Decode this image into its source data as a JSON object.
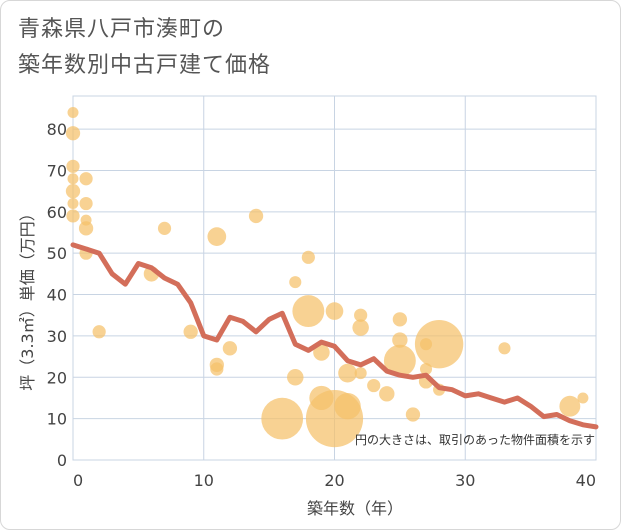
{
  "title": "青森県八戸市湊町の\n築年数別中古戸建て価格",
  "colors": {
    "bubble": "#f5c06a",
    "line": "#d36e5a",
    "grid": "#c8d4e3",
    "text": "#444444"
  },
  "chart_data": {
    "type": "scatter",
    "xlabel": "築年数（年）",
    "ylabel": "坪（3.3㎡）単価（万円）",
    "xlim": [
      0,
      40
    ],
    "ylim": [
      0,
      88
    ],
    "xticks": [
      "0",
      "10",
      "20",
      "30",
      "40"
    ],
    "yticks": [
      "0",
      "10",
      "20",
      "30",
      "40",
      "50",
      "60",
      "70",
      "80"
    ],
    "note": "円の大きさは、取引のあった物件面積を示す",
    "grid": true,
    "points": [
      {
        "x": 0,
        "y": 84,
        "s": 1
      },
      {
        "x": 0,
        "y": 79,
        "s": 1.3
      },
      {
        "x": 0,
        "y": 71,
        "s": 1.2
      },
      {
        "x": 0,
        "y": 68,
        "s": 1
      },
      {
        "x": 0,
        "y": 65,
        "s": 1.3
      },
      {
        "x": 0,
        "y": 62,
        "s": 1
      },
      {
        "x": 0,
        "y": 59,
        "s": 1.2
      },
      {
        "x": 1,
        "y": 68,
        "s": 1.2
      },
      {
        "x": 1,
        "y": 62,
        "s": 1.2
      },
      {
        "x": 1,
        "y": 58,
        "s": 1
      },
      {
        "x": 1,
        "y": 56,
        "s": 1.3
      },
      {
        "x": 1,
        "y": 50,
        "s": 1.2
      },
      {
        "x": 2,
        "y": 31,
        "s": 1.2
      },
      {
        "x": 6,
        "y": 45,
        "s": 1.4
      },
      {
        "x": 7,
        "y": 56,
        "s": 1.2
      },
      {
        "x": 9,
        "y": 31,
        "s": 1.3
      },
      {
        "x": 11,
        "y": 54,
        "s": 1.7
      },
      {
        "x": 11,
        "y": 23,
        "s": 1.3
      },
      {
        "x": 11,
        "y": 22,
        "s": 1.2
      },
      {
        "x": 12,
        "y": 27,
        "s": 1.3
      },
      {
        "x": 14,
        "y": 59,
        "s": 1.3
      },
      {
        "x": 17,
        "y": 43,
        "s": 1.1
      },
      {
        "x": 17,
        "y": 20,
        "s": 1.5
      },
      {
        "x": 16,
        "y": 10,
        "s": 3.8
      },
      {
        "x": 18,
        "y": 36,
        "s": 2.9
      },
      {
        "x": 18,
        "y": 49,
        "s": 1.2
      },
      {
        "x": 19,
        "y": 26,
        "s": 1.5
      },
      {
        "x": 19,
        "y": 15,
        "s": 2.2
      },
      {
        "x": 20,
        "y": 36,
        "s": 1.6
      },
      {
        "x": 20,
        "y": 10,
        "s": 5.2
      },
      {
        "x": 21,
        "y": 21,
        "s": 1.7
      },
      {
        "x": 21,
        "y": 13,
        "s": 2.4
      },
      {
        "x": 22,
        "y": 35,
        "s": 1.2
      },
      {
        "x": 22,
        "y": 32,
        "s": 1.5
      },
      {
        "x": 22,
        "y": 21,
        "s": 1.1
      },
      {
        "x": 23,
        "y": 18,
        "s": 1.2
      },
      {
        "x": 24,
        "y": 16,
        "s": 1.4
      },
      {
        "x": 25,
        "y": 34,
        "s": 1.3
      },
      {
        "x": 25,
        "y": 29,
        "s": 1.4
      },
      {
        "x": 25,
        "y": 24,
        "s": 2.9
      },
      {
        "x": 26,
        "y": 11,
        "s": 1.3
      },
      {
        "x": 27,
        "y": 28,
        "s": 1.1
      },
      {
        "x": 27,
        "y": 22,
        "s": 1.1
      },
      {
        "x": 27,
        "y": 19,
        "s": 1.3
      },
      {
        "x": 28,
        "y": 28,
        "s": 4.4
      },
      {
        "x": 28,
        "y": 17,
        "s": 1.1
      },
      {
        "x": 33,
        "y": 27,
        "s": 1.1
      },
      {
        "x": 38,
        "y": 13,
        "s": 1.9
      },
      {
        "x": 39,
        "y": 15,
        "s": 1
      }
    ],
    "series": [
      {
        "type": "line",
        "x": [
          0,
          1,
          2,
          3,
          4,
          5,
          6,
          7,
          8,
          9,
          10,
          11,
          12,
          13,
          14,
          15,
          16,
          17,
          18,
          19,
          20,
          21,
          22,
          23,
          24,
          25,
          26,
          27,
          28,
          29,
          30,
          31,
          32,
          33,
          34,
          35,
          36,
          37,
          38,
          39,
          40
        ],
        "y": [
          52,
          51,
          50,
          45,
          42.5,
          47.5,
          46.5,
          44,
          42.5,
          38,
          30,
          29,
          34.5,
          33.5,
          31,
          34,
          35.5,
          28,
          26.5,
          28.5,
          27.5,
          24,
          23,
          24.5,
          21.5,
          20.5,
          20,
          20.5,
          17.5,
          17,
          15.5,
          16,
          15,
          14,
          15,
          13,
          10.5,
          11,
          9.5,
          8.5,
          8
        ]
      }
    ]
  }
}
